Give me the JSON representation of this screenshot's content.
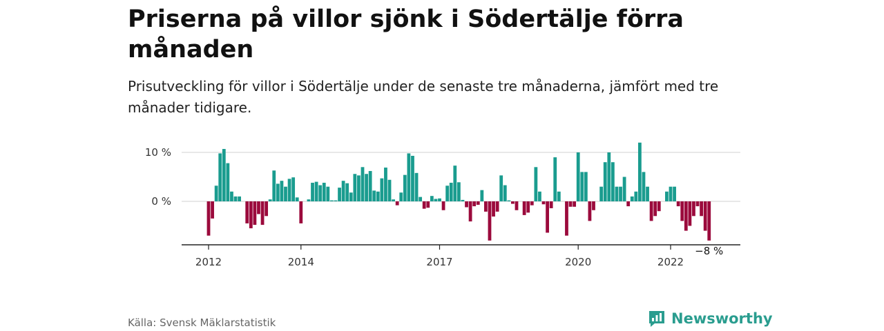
{
  "header": {
    "title": "Priserna på villor sjönk i Södertälje förra månaden",
    "subtitle": "Prisutveckling för villor i Södertälje under de senaste tre månaderna, jämfört med tre månader tidigare."
  },
  "footer": {
    "source": "Källa: Svensk Mäklarstatistik",
    "brand": "Newsworthy"
  },
  "colors": {
    "positive": "#1a9c8f",
    "negative": "#9b0a3c",
    "grid": "#d9d9d9",
    "axis": "#222222",
    "brand": "#2a9d8f"
  },
  "chart_data": {
    "type": "bar",
    "x_start": "2012-01",
    "x_end": "2023-01",
    "ylim": [
      -9,
      12
    ],
    "yticks": [
      {
        "value": 0,
        "label": "0 %"
      },
      {
        "value": 10,
        "label": "10 %"
      }
    ],
    "xticks": [
      {
        "label": "2012",
        "at": "2012-01"
      },
      {
        "label": "2014",
        "at": "2014-01"
      },
      {
        "label": "2017",
        "at": "2017-01"
      },
      {
        "label": "2020",
        "at": "2020-01"
      },
      {
        "label": "2022",
        "at": "2022-01"
      }
    ],
    "last_label": "−8 %",
    "values": [
      -7,
      -3.5,
      3.2,
      9.8,
      10.7,
      7.8,
      2,
      1,
      1,
      0,
      -4.5,
      -5.5,
      -4.8,
      -2.6,
      -4.8,
      -3,
      0.4,
      6.3,
      3.6,
      4.2,
      3,
      4.6,
      4.9,
      0.8,
      -4.5,
      0,
      0.4,
      3.8,
      4,
      3.3,
      3.8,
      3,
      0.2,
      0.2,
      2.8,
      4.2,
      3.7,
      1.8,
      5.6,
      5.3,
      7,
      5.6,
      6.2,
      2.2,
      2,
      4.7,
      6.9,
      4.4,
      0.4,
      -0.8,
      1.8,
      5.4,
      9.8,
      9.3,
      5.8,
      0.9,
      -1.5,
      -1.3,
      1.1,
      0.5,
      0.6,
      -1.8,
      3.2,
      3.8,
      7.3,
      3.9,
      0.3,
      -1.2,
      -4.1,
      -1,
      -0.7,
      2.3,
      -2.1,
      -8,
      -3.1,
      -2.1,
      5.3,
      3.3,
      0.2,
      -0.5,
      -1.8,
      0,
      -2.8,
      -2.3,
      -0.8,
      7,
      2,
      -0.6,
      -6.4,
      -1.4,
      9,
      2,
      0,
      -7,
      -1.1,
      -1.1,
      10,
      6,
      6,
      -4,
      -1.8,
      0,
      3,
      8,
      10,
      8,
      3,
      3,
      5,
      -1,
      1,
      2,
      12,
      6,
      3,
      -4,
      -3,
      -2,
      0,
      2,
      3,
      3,
      -1,
      -4,
      -6,
      -5,
      -3,
      -1,
      -3,
      -6,
      -8
    ]
  }
}
